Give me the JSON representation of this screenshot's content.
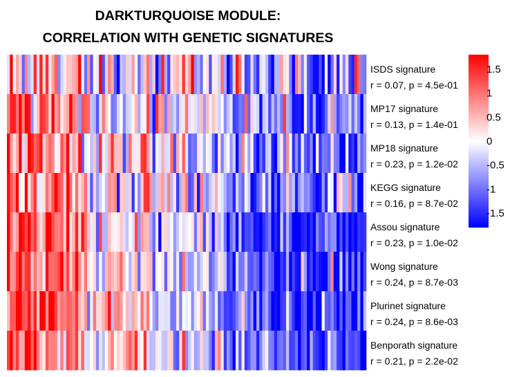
{
  "chart_data": {
    "type": "heatmap",
    "title_lines": [
      "DARKTURQUOISE MODULE:",
      "CORRELATION WITH GENETIC SIGNATURES"
    ],
    "rows": [
      {
        "name": "ISDS signature",
        "stat": "r = 0.07, p = 4.5e-01"
      },
      {
        "name": "MP17 signature",
        "stat": "r = 0.13, p = 1.4e-01"
      },
      {
        "name": "MP18 signature",
        "stat": "r = 0.23, p = 1.2e-02"
      },
      {
        "name": "KEGG signature",
        "stat": "r = 0.16, p = 8.7e-02"
      },
      {
        "name": "Assou signature",
        "stat": "r = 0.23, p = 1.0e-02"
      },
      {
        "name": "Wong signature",
        "stat": "r = 0.24, p = 8.7e-03"
      },
      {
        "name": "Plurinet signature",
        "stat": "r = 0.24, p = 8.6e-03"
      },
      {
        "name": "Benporath signature",
        "stat": "r = 0.21, p = 2.2e-02"
      }
    ],
    "n_columns": 121,
    "colorscale": {
      "low": "#0000ff",
      "mid": "#ffffff",
      "high": "#ff0000"
    },
    "value_range": [
      -1.8,
      1.8
    ],
    "legend": {
      "position": "right",
      "ticks": [
        1.5,
        1,
        0.5,
        0,
        -0.5,
        -1,
        -1.5
      ],
      "tick_labels": [
        "1.5",
        "1",
        "0.5",
        "0",
        "-0.5",
        "-1",
        "-1.5"
      ]
    },
    "values_note_free": true,
    "matrix": []
  }
}
